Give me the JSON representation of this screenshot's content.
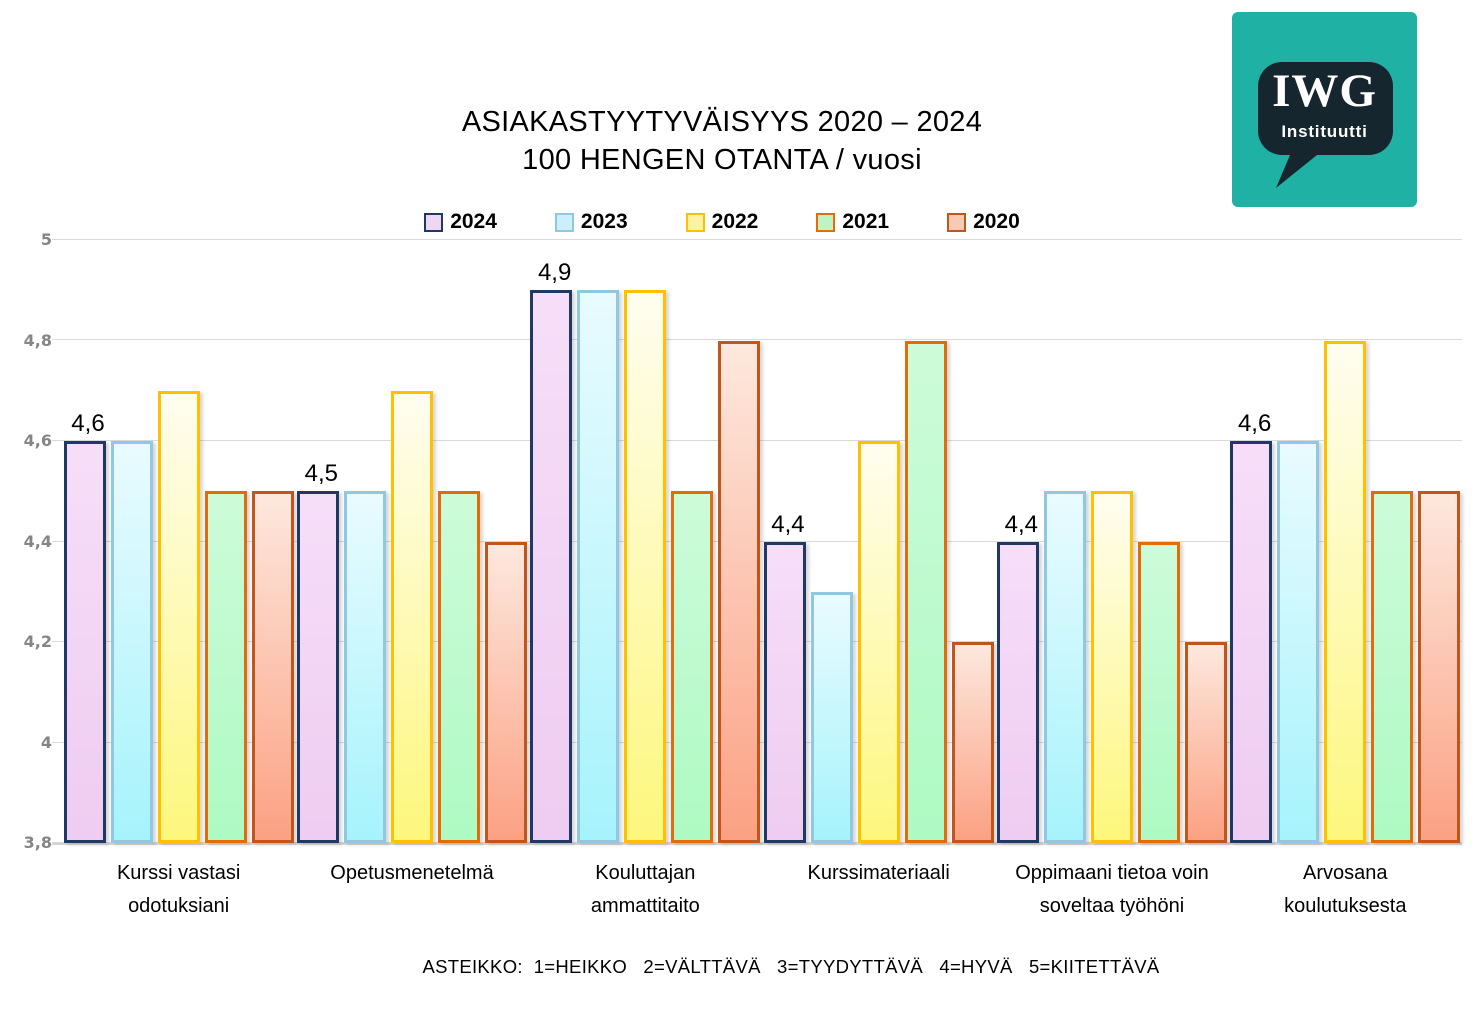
{
  "title": {
    "line1": "ASIAKASTYYTYVÄISYYS 2020 – 2024",
    "line2": "100 HENGEN OTANTA / vuosi"
  },
  "logo": {
    "text": "IWG",
    "subtext": "Instituutti",
    "square_color": "#1FB2A4",
    "bubble_color": "#15262E"
  },
  "footer": {
    "text": "ASTEIKKO:  1=HEIKKO   2=VÄLTTÄVÄ   3=TYYDYTTÄVÄ   4=HYVÄ   5=KIITETTÄVÄ"
  },
  "chart_data": {
    "type": "bar",
    "title": "ASIAKASTYYTYVÄISYYS 2020 – 2024",
    "subtitle": "100 HENGEN OTANTA / vuosi",
    "categories": [
      "Kurssi vastasi\nodotuksiani",
      "Opetusmenetelmä",
      "Kouluttajan\nammattitaito",
      "Kurssimateriaali",
      "Oppimaani tietoa voin\nsoveltaa työhöni",
      "Arvosana\nkoulutuksesta"
    ],
    "series": [
      {
        "name": "2024",
        "values": [
          4.6,
          4.5,
          4.9,
          4.4,
          4.4,
          4.6
        ],
        "border": "#1F3864",
        "fill_top": "#f6def8",
        "fill_bottom": "#efccf1",
        "legend_fill": "#eed7f3"
      },
      {
        "name": "2023",
        "values": [
          4.6,
          4.5,
          4.9,
          4.3,
          4.5,
          4.6
        ],
        "border": "#8FC8E0",
        "fill_top": "#e9fbfe",
        "fill_bottom": "#a6f3fc",
        "legend_fill": "#cdeefb"
      },
      {
        "name": "2022",
        "values": [
          4.7,
          4.7,
          4.9,
          4.6,
          4.5,
          4.8
        ],
        "border": "#FFC000",
        "fill_top": "#fffdf0",
        "fill_bottom": "#fdf77d",
        "legend_fill": "#fff1a6"
      },
      {
        "name": "2021",
        "values": [
          4.5,
          4.5,
          4.5,
          4.8,
          4.4,
          4.5
        ],
        "border": "#E36C0A",
        "fill_top": "#cdfbd9",
        "fill_bottom": "#aefac3",
        "legend_fill": "#bef3c4"
      },
      {
        "name": "2020",
        "values": [
          4.5,
          4.4,
          4.8,
          4.2,
          4.2,
          4.5
        ],
        "border": "#C0561C",
        "fill_top": "#fde8de",
        "fill_bottom": "#fba183",
        "legend_fill": "#f7cab6"
      }
    ],
    "data_labels": [
      "4,6",
      "4,5",
      "4,9",
      "4,4",
      "4,4",
      "4,6"
    ],
    "y_ticks": [
      "5",
      "4,8",
      "4,6",
      "4,4",
      "4,2",
      "4",
      "3,8"
    ],
    "ylim": [
      3.8,
      5.0
    ],
    "grid": true,
    "legend_position": "top",
    "scale_note": "ASTEIKKO: 1=HEIKKO 2=VÄLTTÄVÄ 3=TYYDYTTÄVÄ 4=HYVÄ 5=KIITETTÄVÄ"
  }
}
